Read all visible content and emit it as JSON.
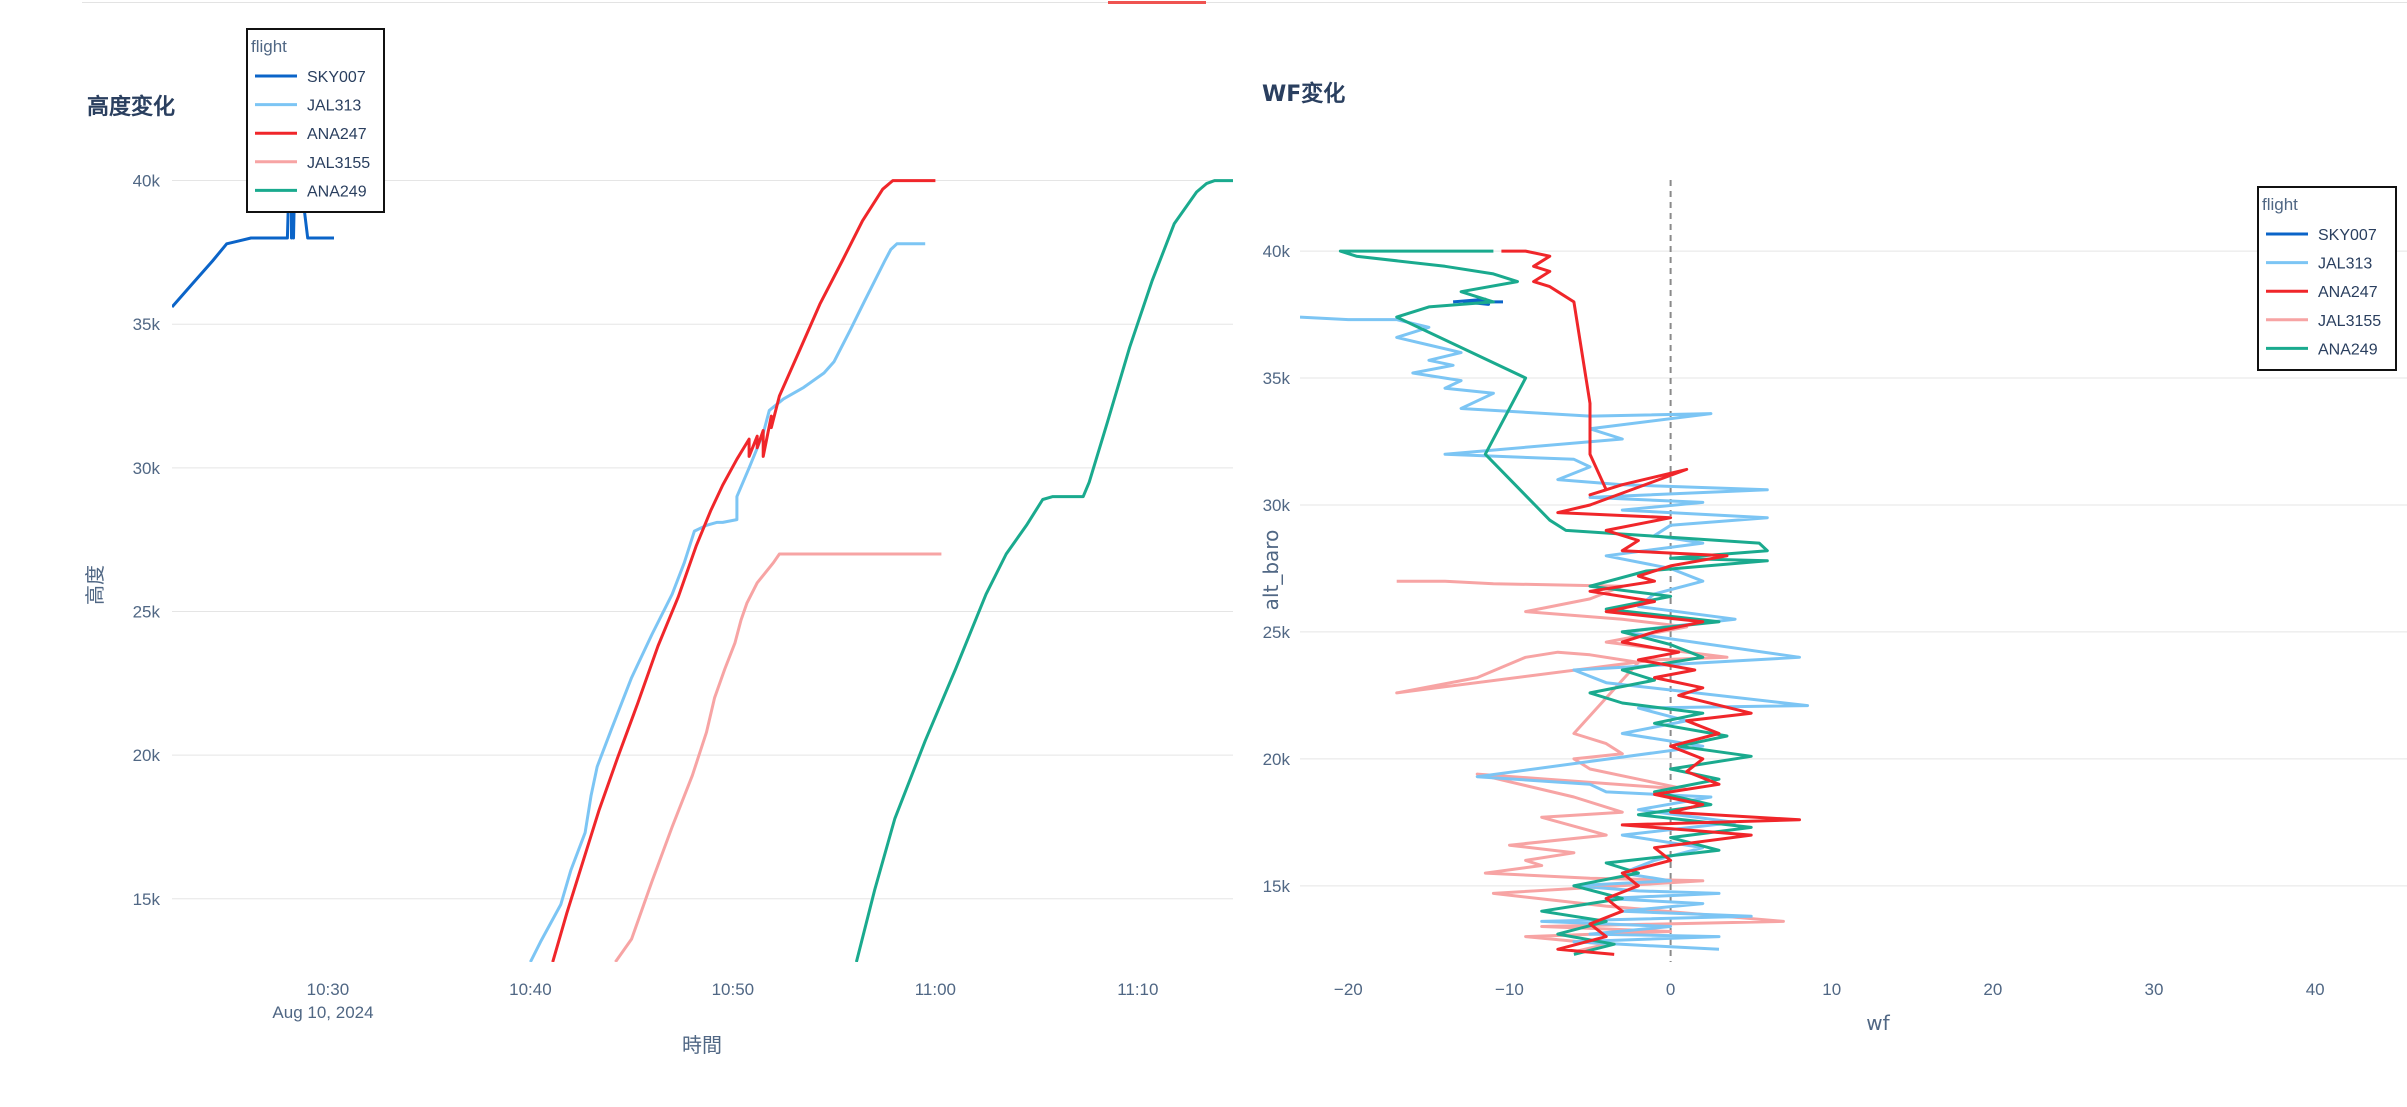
{
  "colors": {
    "SKY007": "#0b64c8",
    "JAL313": "#7cc5f4",
    "ANA247": "#f0262a",
    "JAL3155": "#f7a4a4",
    "ANA249": "#1aaa8e",
    "grid": "#e5e5e5",
    "zero_line": "#8a8a8a"
  },
  "chart_data": [
    {
      "type": "line",
      "title": "高度変化",
      "xlabel": "時間",
      "ylabel": "高度",
      "x_ticks": [
        "10:30",
        "10:40",
        "10:50",
        "11:00",
        "11:10"
      ],
      "x_tick_sub": "Aug 10, 2024",
      "y_ticks": [
        "15k",
        "20k",
        "25k",
        "30k",
        "35k",
        "40k"
      ],
      "x_unit": "minutes after 10:00, Aug 10, 2024",
      "xlim": [
        22.3,
        74.7
      ],
      "ylim": [
        12800,
        43500
      ],
      "grid": true,
      "legend": {
        "title": "flight",
        "placement": "top-left",
        "entries": [
          "SKY007",
          "JAL313",
          "ANA247",
          "JAL3155",
          "ANA249"
        ]
      },
      "series": [
        {
          "name": "SKY007",
          "x": [
            22.3,
            23.3,
            24.3,
            25.0,
            25.6,
            26.2,
            27.0,
            28.0,
            28.2,
            28.2,
            28.3,
            28.3,
            28.4,
            29.0,
            30.0,
            30.3
          ],
          "y": [
            35600,
            36400,
            37200,
            37800,
            37900,
            38000,
            38000,
            38000,
            43000,
            38000,
            42800,
            38000,
            41500,
            38000,
            38000,
            38000
          ]
        },
        {
          "name": "JAL313",
          "x": [
            40.0,
            40.5,
            41.5,
            42.0,
            42.7,
            43.0,
            43.3,
            44.0,
            45.0,
            46.0,
            47.0,
            47.6,
            48.1,
            48.7,
            49.2,
            49.5,
            50.2,
            50.2,
            50.8,
            51.5,
            51.8,
            52.5,
            53.5,
            54.5,
            55.0,
            55.8,
            56.5,
            57.5,
            57.8,
            58.1,
            59.5
          ],
          "y": [
            12800,
            13500,
            14800,
            16000,
            17300,
            18600,
            19600,
            20900,
            22700,
            24200,
            25600,
            26700,
            27800,
            28000,
            28100,
            28100,
            28200,
            29000,
            30000,
            31200,
            32000,
            32400,
            32800,
            33300,
            33700,
            34800,
            35800,
            37200,
            37600,
            37800,
            37800
          ]
        },
        {
          "name": "ANA247",
          "x": [
            41.1,
            41.8,
            42.6,
            43.4,
            44.3,
            45.3,
            46.3,
            47.3,
            48.2,
            48.9,
            49.5,
            50.2,
            50.8,
            50.8,
            51.2,
            51.2,
            51.5,
            51.5,
            51.9,
            51.9,
            52.3,
            53.3,
            54.3,
            55.4,
            56.4,
            57.4,
            57.9,
            58.3,
            59.6,
            60.0
          ],
          "y": [
            12800,
            14500,
            16300,
            18100,
            19900,
            21800,
            23800,
            25500,
            27300,
            28500,
            29400,
            30300,
            31000,
            30400,
            31100,
            30700,
            31300,
            30400,
            31800,
            31400,
            32500,
            34100,
            35700,
            37200,
            38600,
            39700,
            40000,
            40000,
            40000,
            40000
          ]
        },
        {
          "name": "JAL3155",
          "x": [
            44.2,
            45.0,
            46.0,
            47.0,
            48.0,
            48.7,
            49.1,
            49.6,
            50.1,
            50.4,
            50.7,
            51.2,
            52.0,
            52.3,
            54.0,
            56.0,
            58.0,
            60.3
          ],
          "y": [
            12800,
            13600,
            15600,
            17500,
            19300,
            20800,
            22000,
            23000,
            23900,
            24700,
            25300,
            26000,
            26700,
            27000,
            27000,
            27000,
            27000,
            27000
          ]
        },
        {
          "name": "ANA249",
          "x": [
            56.1,
            57.0,
            58.0,
            59.5,
            61.0,
            62.5,
            63.5,
            64.5,
            65.3,
            65.8,
            66.2,
            67.3,
            67.6,
            68.5,
            69.6,
            70.7,
            71.8,
            72.9,
            73.4,
            73.8,
            74.7
          ],
          "y": [
            12800,
            15300,
            17800,
            20500,
            23000,
            25600,
            27000,
            28000,
            28900,
            29000,
            29000,
            29000,
            29500,
            31600,
            34200,
            36500,
            38500,
            39600,
            39900,
            40000,
            40000
          ]
        }
      ]
    },
    {
      "type": "line",
      "title": "WF変化",
      "xlabel": "wf",
      "ylabel": "alt_baro",
      "x_ticks": [
        "−20",
        "−10",
        "0",
        "10",
        "20",
        "30",
        "40"
      ],
      "y_ticks": [
        "15k",
        "20k",
        "25k",
        "30k",
        "35k",
        "40k"
      ],
      "xlim": [
        -23.0,
        45.7
      ],
      "ylim": [
        12000,
        42800
      ],
      "grid": true,
      "zero_line": true,
      "legend": {
        "title": "flight",
        "placement": "top-right",
        "entries": [
          "SKY007",
          "JAL313",
          "ANA247",
          "JAL3155",
          "ANA249"
        ]
      },
      "series": [
        {
          "name": "SKY007",
          "x": [
            -13.5,
            -11.5,
            -11.3,
            -12.8,
            -10.4
          ],
          "y": [
            38000,
            38100,
            37900,
            38000,
            38000
          ]
        },
        {
          "name": "JAL313",
          "x": [
            -23.0,
            -20.0,
            -17.0,
            -15.0,
            -17.0,
            -15.0,
            -13.0,
            -15.0,
            -13.5,
            -16.0,
            -13.0,
            -14.0,
            -11.0,
            -13.0,
            -5.0,
            2.5,
            -5.0,
            -3.0,
            -14.0,
            -6.0,
            -5.0,
            -7.0,
            -3.0,
            6.0,
            -5.0,
            2.0,
            -3.0,
            6.0,
            0.0,
            -1.0,
            2.0,
            -4.0,
            0.0,
            2.0,
            -1.0,
            -2.0,
            4.0,
            -3.0,
            8.0,
            -6.0,
            -4.0,
            8.5,
            -2.0,
            1.0,
            -3.0,
            2.0,
            -12.0,
            -5.0,
            -4.0,
            2.5,
            -2.0,
            4.0,
            -3.0,
            2.0,
            -1.0,
            -3.0,
            0.0,
            -6.0,
            -2.0,
            3.0,
            -4.0,
            2.0,
            -3.0,
            5.0,
            -8.0,
            0.0,
            -5.0,
            3.0,
            -6.0,
            0.0,
            3.0
          ],
          "y": [
            37400,
            37300,
            37300,
            37000,
            36600,
            36300,
            36000,
            35700,
            35500,
            35200,
            34900,
            34600,
            34400,
            33800,
            33500,
            33600,
            33000,
            32600,
            32000,
            31800,
            31500,
            31000,
            30800,
            30600,
            30300,
            30100,
            29800,
            29500,
            29200,
            28800,
            28500,
            28000,
            27500,
            27000,
            26500,
            26000,
            25500,
            25000,
            24000,
            23500,
            23000,
            22100,
            22000,
            21500,
            21000,
            20500,
            19300,
            19000,
            18700,
            18500,
            18000,
            17500,
            17000,
            16500,
            16000,
            15500,
            15200,
            15000,
            14800,
            14700,
            14500,
            14300,
            14000,
            13800,
            13600,
            13400,
            13100,
            13000,
            12800,
            12600,
            12500
          ]
        },
        {
          "name": "ANA247",
          "x": [
            -10.5,
            -9.0,
            -7.5,
            -8.5,
            -7.5,
            -8.5,
            -7.5,
            -7.0,
            -6.0,
            -5.0,
            -5.0,
            -4.0,
            -5.0,
            -3.0,
            1.0,
            -5.0,
            -7.0,
            0.0,
            -4.0,
            -2.0,
            -3.0,
            3.5,
            0.0,
            -2.0,
            -1.0,
            -5.0,
            -1.0,
            -4.0,
            2.0,
            -1.0,
            -3.0,
            0.5,
            -2.0,
            1.5,
            -1.0,
            2.0,
            0.5,
            5.0,
            1.0,
            3.0,
            0.0,
            2.0,
            1.0,
            3.0,
            -1.0,
            2.0,
            0.0,
            8.0,
            -3.0,
            5.0,
            -1.0,
            0.0,
            -3.0,
            -2.0,
            -4.0,
            -3.0,
            -5.0,
            -4.0,
            -7.0,
            -3.5
          ],
          "y": [
            40000,
            40000,
            39800,
            39400,
            39200,
            38800,
            38600,
            38400,
            38000,
            34000,
            32000,
            30600,
            30400,
            30800,
            31400,
            30000,
            29700,
            29500,
            29000,
            28600,
            28200,
            28000,
            27600,
            27200,
            27000,
            26600,
            26200,
            25800,
            25400,
            25000,
            24600,
            24200,
            23900,
            23500,
            23200,
            22800,
            22500,
            21800,
            21500,
            21000,
            20500,
            20000,
            19500,
            19000,
            18600,
            18200,
            17900,
            17600,
            17400,
            17000,
            16500,
            16000,
            15500,
            15000,
            14500,
            14000,
            13500,
            13000,
            12500,
            12300
          ]
        },
        {
          "name": "ANA249",
          "x": [
            -11.0,
            -20.5,
            -19.5,
            -14.0,
            -11.0,
            -9.5,
            -13.0,
            -11.0,
            -15.0,
            -17.0,
            -9.0,
            -11.5,
            -7.5,
            -6.5,
            5.5,
            6.0,
            0.0,
            6.0,
            -1.5,
            -5.0,
            0.0,
            -4.0,
            3.0,
            -3.0,
            0.0,
            2.0,
            -3.0,
            -1.0,
            -5.0,
            -3.0,
            2.0,
            -1.0,
            3.5,
            0.5,
            5.0,
            0.0,
            3.0,
            -1.0,
            2.5,
            -2.0,
            5.0,
            0.0,
            3.0,
            -4.0,
            -2.0,
            -6.0,
            -3.0,
            -8.0,
            -4.0,
            -7.0,
            -3.5,
            -6.0
          ],
          "y": [
            40000,
            40000,
            39800,
            39400,
            39100,
            38800,
            38400,
            38000,
            37800,
            37400,
            35000,
            32000,
            29400,
            29000,
            28500,
            28200,
            27900,
            27800,
            27400,
            26800,
            26400,
            25900,
            25400,
            25000,
            24500,
            24000,
            23500,
            23100,
            22600,
            22200,
            21800,
            21400,
            20900,
            20500,
            20100,
            19600,
            19200,
            18700,
            18200,
            17800,
            17300,
            16900,
            16400,
            15900,
            15500,
            15000,
            14500,
            14000,
            13600,
            13100,
            12700,
            12300
          ]
        },
        {
          "name": "JAL3155",
          "x": [
            -17.0,
            -14.0,
            -11.0,
            -3.0,
            -5.0,
            -9.0,
            -3.0,
            1.0,
            -4.0,
            3.5,
            -1.0,
            -17.0,
            -12.0,
            -9.0,
            -7.0,
            -5.0,
            -2.0,
            -6.0,
            -4.0,
            -3.0,
            -6.0,
            -5.0,
            -2.0,
            1.0,
            -12.0,
            -6.0,
            -3.0,
            -8.0,
            -4.0,
            -10.0,
            -6.0,
            -9.0,
            -8.0,
            -11.5,
            -5.0,
            2.0,
            -11.0,
            -4.0,
            7.0,
            -8.0,
            0.0,
            -9.0,
            -4.0,
            -6.0
          ],
          "y": [
            27000,
            27000,
            26900,
            26800,
            26300,
            25800,
            25500,
            25200,
            24600,
            24000,
            23900,
            22600,
            23200,
            24000,
            24200,
            24100,
            23800,
            21000,
            20600,
            20200,
            20000,
            19600,
            19200,
            18800,
            19400,
            18500,
            17900,
            17700,
            17000,
            16600,
            16300,
            16000,
            15800,
            15500,
            15300,
            15200,
            14700,
            14200,
            13600,
            13400,
            13200,
            13000,
            12700,
            12400
          ]
        }
      ]
    }
  ]
}
